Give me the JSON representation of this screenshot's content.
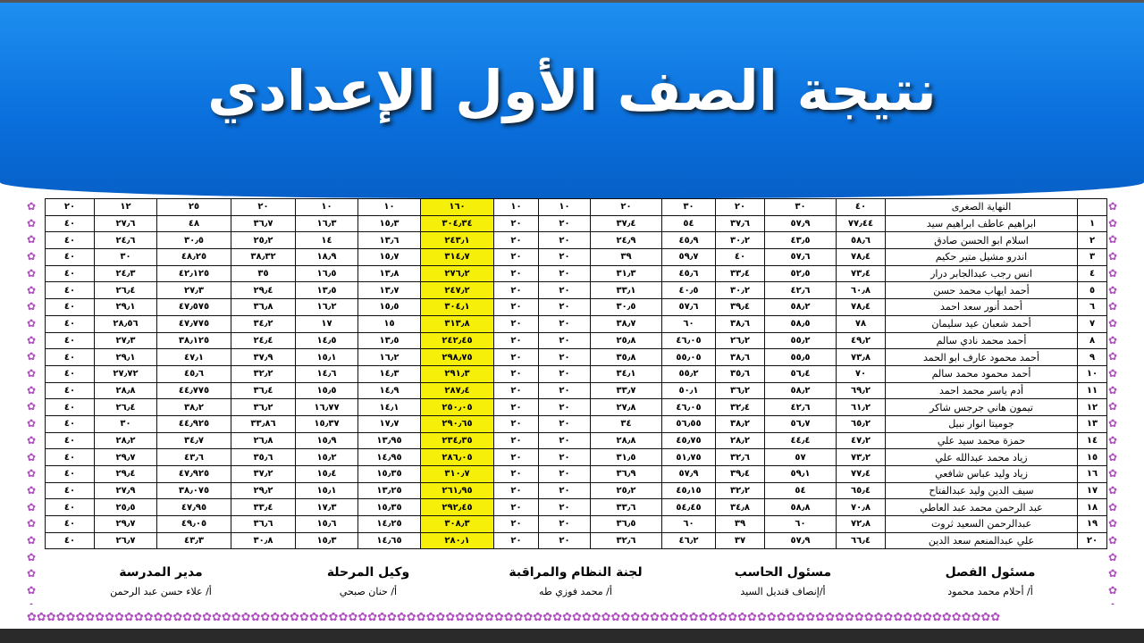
{
  "title": "نتيجة الصف الأول الإعدادي",
  "colors": {
    "header_blue": "#0a6fdc",
    "total_highlight": "#f5ef0a"
  },
  "table": {
    "header": [
      "",
      "النهاية الصغرى",
      "٤٠",
      "٣٠",
      "٢٠",
      "٣٠",
      "٢٠",
      "١٠",
      "١٠",
      "١٦٠",
      "١٠",
      "١٠",
      "٢٠",
      "٢٥",
      "١٢",
      "٢٠"
    ],
    "rows": [
      [
        "١",
        "ابراهيم عاطف ابراهيم سيد",
        "٧٧٫٤٤",
        "٥٧٫٩",
        "٣٧٫٦",
        "٥٤",
        "٣٧٫٤",
        "٢٠",
        "٢٠",
        "٣٠٤٫٣٤",
        "١٥٫٣",
        "١٦٫٣",
        "٣٦٫٧",
        "٤٨",
        "٢٧٫٦",
        "٤٠"
      ],
      [
        "٢",
        "اسلام ابو الحسن صادق",
        "٥٨٫٦",
        "٤٣٫٥",
        "٣٠٫٢",
        "٤٥٫٩",
        "٢٤٫٩",
        "٢٠",
        "٢٠",
        "٢٤٣٫١",
        "١٣٫٦",
        "١٤",
        "٢٥٫٢",
        "٣٠٫٥",
        "٢٤٫٦",
        "٤٠"
      ],
      [
        "٣",
        "اندرو مشيل متير حكيم",
        "٧٨٫٤",
        "٥٧٫٦",
        "٤٠",
        "٥٩٫٧",
        "٣٩",
        "٢٠",
        "٢٠",
        "٣١٤٫٧",
        "١٥٫٧",
        "١٨٫٩",
        "٣٨٫٣٢",
        "٤٨٫٢٥",
        "٣٠",
        "٤٠"
      ],
      [
        "٤",
        "انس رجب عبدالجابر درار",
        "٧٣٫٤",
        "٥٢٫٥",
        "٣٣٫٤",
        "٤٥٫٦",
        "٣١٫٣",
        "٢٠",
        "٢٠",
        "٢٧٦٫٢",
        "١٣٫٨",
        "١٦٫٥",
        "٣٥",
        "٤٢٫١٢٥",
        "٢٤٫٣",
        "٤٠"
      ],
      [
        "٥",
        "أحمد ايهاب محمد حسن",
        "٦٠٫٨",
        "٤٢٫٦",
        "٣٠٫٢",
        "٤٠٫٥",
        "٣٣٫١",
        "٢٠",
        "٢٠",
        "٢٤٧٫٢",
        "١٣٫٧",
        "١٣٫٥",
        "٢٩٫٤",
        "٢٧٫٣",
        "٢٦٫٤",
        "٤٠"
      ],
      [
        "٦",
        "أحمد أنور سعد احمد",
        "٧٨٫٤",
        "٥٨٫٢",
        "٣٩٫٤",
        "٥٧٫٦",
        "٣٠٫٥",
        "٢٠",
        "٢٠",
        "٣٠٤٫١",
        "١٥٫٥",
        "١٦٫٢",
        "٣٦٫٨",
        "٤٧٫٥٧٥",
        "٢٩٫١",
        "٤٠"
      ],
      [
        "٧",
        "أحمد شعبان عيد سليمان",
        "٧٨",
        "٥٨٫٥",
        "٣٨٫٦",
        "٦٠",
        "٣٨٫٧",
        "٢٠",
        "٢٠",
        "٣١٣٫٨",
        "١٥",
        "١٧",
        "٣٤٫٢",
        "٤٧٫٧٧٥",
        "٢٨٫٥٦",
        "٤٠"
      ],
      [
        "٨",
        "أحمد محمد نادي سالم",
        "٤٩٫٢",
        "٥٥٫٢",
        "٢٦٫٢",
        "٤٦٫٠٥",
        "٢٥٫٨",
        "٢٠",
        "٢٠",
        "٢٤٢٫٤٥",
        "١٣٫٥",
        "١٤٫٥",
        "٢٤٫٤",
        "٣٨٫١٢٥",
        "٢٧٫٣",
        "٤٠"
      ],
      [
        "٩",
        "أحمد محمود عارف ابو الحمد",
        "٧٣٫٨",
        "٥٥٫٥",
        "٣٨٫٦",
        "٥٥٫٠٥",
        "٣٥٫٨",
        "٢٠",
        "٢٠",
        "٢٩٨٫٧٥",
        "١٦٫٢",
        "١٥٫١",
        "٣٧٫٩",
        "٤٧٫١",
        "٢٩٫١",
        "٤٠"
      ],
      [
        "١٠",
        "أحمد محمود محمد سالم",
        "٧٠",
        "٥٦٫٤",
        "٣٥٫٦",
        "٥٥٫٢",
        "٣٤٫١",
        "٢٠",
        "٢٠",
        "٢٩١٫٣",
        "١٤٫٣",
        "١٤٫٦",
        "٣٢٫٢",
        "٤٥٫٦",
        "٢٧٫٧٢",
        "٤٠"
      ],
      [
        "١١",
        "أدم ياسر محمد احمد",
        "٦٩٫٢",
        "٥٨٫٢",
        "٣٦٫٢",
        "٥٠٫١",
        "٣٣٫٧",
        "٢٠",
        "٢٠",
        "٢٨٧٫٤",
        "١٤٫٩",
        "١٥٫٥",
        "٣٦٫٤",
        "٤٤٫٧٧٥",
        "٢٨٫٨",
        "٤٠"
      ],
      [
        "١٢",
        "تيمون هاني جرجس شاكر",
        "٦١٫٢",
        "٤٢٫٦",
        "٣٢٫٤",
        "٤٦٫٠٥",
        "٢٧٫٨",
        "٢٠",
        "٢٠",
        "٢٥٠٫٠٥",
        "١٤٫١",
        "١٦٫٧٧",
        "٣٦٫٢",
        "٣٨٫٢",
        "٢٦٫٤",
        "٤٠"
      ],
      [
        "١٣",
        "جوميتا انوار نبيل",
        "٦٥٫٢",
        "٥٦٫٧",
        "٣٨٫٢",
        "٥٦٫٥٥",
        "٣٤",
        "٢٠",
        "٢٠",
        "٢٩٠٫٦٥",
        "١٧٫٧",
        "١٥٫٣٧",
        "٣٣٫٨٦",
        "٤٤٫٩٢٥",
        "٣٠",
        "٤٠"
      ],
      [
        "١٤",
        "حمزة محمد سيد علي",
        "٤٧٫٢",
        "٤٤٫٤",
        "٢٨٫٢",
        "٤٥٫٧٥",
        "٢٨٫٨",
        "٢٠",
        "٢٠",
        "٢٣٤٫٣٥",
        "١٣٫٩٥",
        "١٥٫٩",
        "٢٦٫٨",
        "٣٤٫٧",
        "٢٨٫٢",
        "٤٠"
      ],
      [
        "١٥",
        "زياد محمد عبدالله علي",
        "٧٣٫٢",
        "٥٧",
        "٣٢٫٦",
        "٥١٫٧٥",
        "٣١٫٥",
        "٢٠",
        "٢٠",
        "٢٨٦٫٠٥",
        "١٤٫٩٥",
        "١٥٫٢",
        "٣٥٫٦",
        "٤٣٫٦",
        "٢٩٫٧",
        "٤٠"
      ],
      [
        "١٦",
        "زياد وليد عباس شافعي",
        "٧٧٫٤",
        "٥٩٫١",
        "٣٩٫٤",
        "٥٧٫٩",
        "٣٦٫٩",
        "٢٠",
        "٢٠",
        "٣١٠٫٧",
        "١٥٫٣٥",
        "١٥٫٤",
        "٣٧٫٢",
        "٤٧٫٩٢٥",
        "٢٩٫٤",
        "٤٠"
      ],
      [
        "١٧",
        "سيف الدين وليد عبدالفتاح",
        "٦٥٫٤",
        "٥٤",
        "٣٢٫٢",
        "٤٥٫١٥",
        "٢٥٫٢",
        "٢٠",
        "٢٠",
        "٢٦١٫٩٥",
        "١٣٫٢٥",
        "١٥٫١",
        "٢٩٫٢",
        "٣٨٫٠٧٥",
        "٢٧٫٩",
        "٤٠"
      ],
      [
        "١٨",
        "عبد الرحمن محمد عبد العاطي",
        "٧٠٫٨",
        "٥٨٫٨",
        "٣٤٫٨",
        "٥٤٫٤٥",
        "٣٣٫٦",
        "٢٠",
        "٢٠",
        "٢٩٢٫٤٥",
        "١٥٫٣٥",
        "١٧٫٣",
        "٣٣٫٤",
        "٤٧٫٩٥",
        "٢٥٫٥",
        "٤٠"
      ],
      [
        "١٩",
        "عبدالرحمن السعيد ثروت",
        "٧٢٫٨",
        "٦٠",
        "٣٩",
        "٦٠",
        "٣٦٫٥",
        "٢٠",
        "٢٠",
        "٣٠٨٫٣",
        "١٤٫٢٥",
        "١٥٫٦",
        "٣٦٫٦",
        "٤٩٫٠٥",
        "٢٩٫٧",
        "٤٠"
      ],
      [
        "٢٠",
        "علي عبدالمنعم سعد الدين",
        "٦٦٫٤",
        "٥٧٫٩",
        "٣٧",
        "٤٦٫٢",
        "٣٢٫٦",
        "٢٠",
        "٢٠",
        "٢٨٠٫١",
        "١٤٫٦٥",
        "١٥٫٣",
        "٣٠٫٨",
        "٤٣٫٣",
        "٢٦٫٧",
        "٤٠"
      ]
    ]
  },
  "signatures": [
    {
      "role": "مسئول الفصل",
      "name": "أ/ أحلام محمد محمود"
    },
    {
      "role": "مسئول الحاسب",
      "name": "أ/إنصاف قنديل السيد"
    },
    {
      "role": "لجنة النظام والمراقبة",
      "name": "أ/ محمد فوزي طه"
    },
    {
      "role": "وكيل المرحلة",
      "name": "أ/ حنان صبحي"
    },
    {
      "role": "مدير المدرسة",
      "name": "أ/ علاء حسن عبد الرحمن"
    }
  ]
}
